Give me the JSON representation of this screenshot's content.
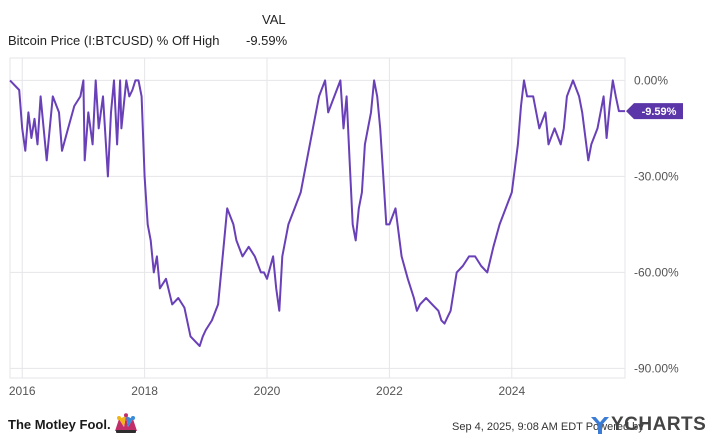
{
  "legend": {
    "column_header": "VAL",
    "series_name": "Bitcoin Price (I:BTCUSD) % Off High",
    "series_value": "-9.59%"
  },
  "footer": {
    "brand": "The Motley Fool.",
    "timestamp": "Sep 4, 2025, 9:08 AM EDT Powered by",
    "provider": "YCHARTS"
  },
  "colors": {
    "line": "#6940b8",
    "grid": "#e6e6ea",
    "badge": "#5b36a8",
    "axis_text": "#555555"
  },
  "icons": [
    "jester-cap-icon",
    "ycharts-y-icon"
  ],
  "chart_data": {
    "type": "line",
    "title": "",
    "xlabel": "",
    "ylabel": "",
    "ylim": [
      -93,
      7
    ],
    "xlim": [
      2015.8,
      2025.85
    ],
    "x_ticks": [
      2016,
      2018,
      2020,
      2022,
      2024
    ],
    "x_tick_labels": [
      "2016",
      "2018",
      "2020",
      "2022",
      "2024"
    ],
    "y_ticks": [
      0,
      -30,
      -60,
      -90
    ],
    "y_tick_labels": [
      "0.00%",
      "-30.00%",
      "-60.00%",
      "-90.00%"
    ],
    "grid": true,
    "end_label": "-9.59%",
    "series": [
      {
        "name": "Bitcoin Price (I:BTCUSD) % Off High",
        "x": [
          2015.8,
          2015.95,
          2016.0,
          2016.05,
          2016.1,
          2016.15,
          2016.2,
          2016.25,
          2016.3,
          2016.4,
          2016.5,
          2016.6,
          2016.65,
          2016.75,
          2016.85,
          2016.95,
          2017.0,
          2017.02,
          2017.08,
          2017.15,
          2017.2,
          2017.25,
          2017.32,
          2017.4,
          2017.45,
          2017.5,
          2017.55,
          2017.6,
          2017.62,
          2017.7,
          2017.75,
          2017.8,
          2017.85,
          2017.9,
          2017.95,
          2018.0,
          2018.05,
          2018.1,
          2018.15,
          2018.2,
          2018.25,
          2018.35,
          2018.45,
          2018.55,
          2018.65,
          2018.75,
          2018.85,
          2018.9,
          2018.95,
          2019.0,
          2019.1,
          2019.2,
          2019.3,
          2019.35,
          2019.45,
          2019.5,
          2019.6,
          2019.7,
          2019.8,
          2019.9,
          2019.95,
          2020.0,
          2020.1,
          2020.15,
          2020.2,
          2020.25,
          2020.35,
          2020.45,
          2020.55,
          2020.65,
          2020.75,
          2020.85,
          2020.95,
          2021.0,
          2021.1,
          2021.2,
          2021.25,
          2021.3,
          2021.35,
          2021.4,
          2021.45,
          2021.5,
          2021.55,
          2021.6,
          2021.7,
          2021.75,
          2021.8,
          2021.85,
          2021.9,
          2021.95,
          2022.0,
          2022.1,
          2022.2,
          2022.3,
          2022.4,
          2022.45,
          2022.5,
          2022.6,
          2022.7,
          2022.8,
          2022.85,
          2022.9,
          2022.95,
          2023.0,
          2023.1,
          2023.2,
          2023.3,
          2023.4,
          2023.5,
          2023.6,
          2023.7,
          2023.8,
          2023.9,
          2024.0,
          2024.1,
          2024.15,
          2024.2,
          2024.25,
          2024.35,
          2024.45,
          2024.55,
          2024.6,
          2024.7,
          2024.8,
          2024.85,
          2024.9,
          2025.0,
          2025.1,
          2025.15,
          2025.25,
          2025.3,
          2025.4,
          2025.5,
          2025.55,
          2025.6,
          2025.65,
          2025.7,
          2025.75,
          2025.8,
          2025.85
        ],
        "values": [
          0,
          -3,
          -15,
          -22,
          -10,
          -18,
          -12,
          -20,
          -5,
          -25,
          -5,
          -10,
          -22,
          -15,
          -8,
          -5,
          0,
          -25,
          -10,
          -20,
          0,
          -15,
          -5,
          -30,
          -10,
          0,
          -20,
          0,
          -15,
          0,
          -5,
          -3,
          0,
          0,
          -5,
          -30,
          -45,
          -50,
          -60,
          -55,
          -65,
          -62,
          -70,
          -68,
          -71,
          -80,
          -82,
          -83,
          -80,
          -78,
          -75,
          -70,
          -50,
          -40,
          -45,
          -50,
          -55,
          -52,
          -55,
          -60,
          -60,
          -62,
          -55,
          -65,
          -72,
          -55,
          -45,
          -40,
          -35,
          -25,
          -15,
          -5,
          0,
          -10,
          -5,
          0,
          -15,
          -5,
          -25,
          -45,
          -50,
          -40,
          -35,
          -20,
          -10,
          0,
          -5,
          -15,
          -30,
          -45,
          -45,
          -40,
          -55,
          -62,
          -68,
          -72,
          -70,
          -68,
          -70,
          -72,
          -75,
          -76,
          -74,
          -72,
          -60,
          -58,
          -55,
          -55,
          -58,
          -60,
          -52,
          -45,
          -40,
          -35,
          -20,
          -8,
          0,
          -5,
          -5,
          -15,
          -10,
          -20,
          -15,
          -20,
          -15,
          -5,
          0,
          -5,
          -10,
          -25,
          -20,
          -15,
          -5,
          -18,
          -8,
          0,
          -5,
          -9.59,
          -9.59,
          -9.59
        ]
      }
    ]
  }
}
